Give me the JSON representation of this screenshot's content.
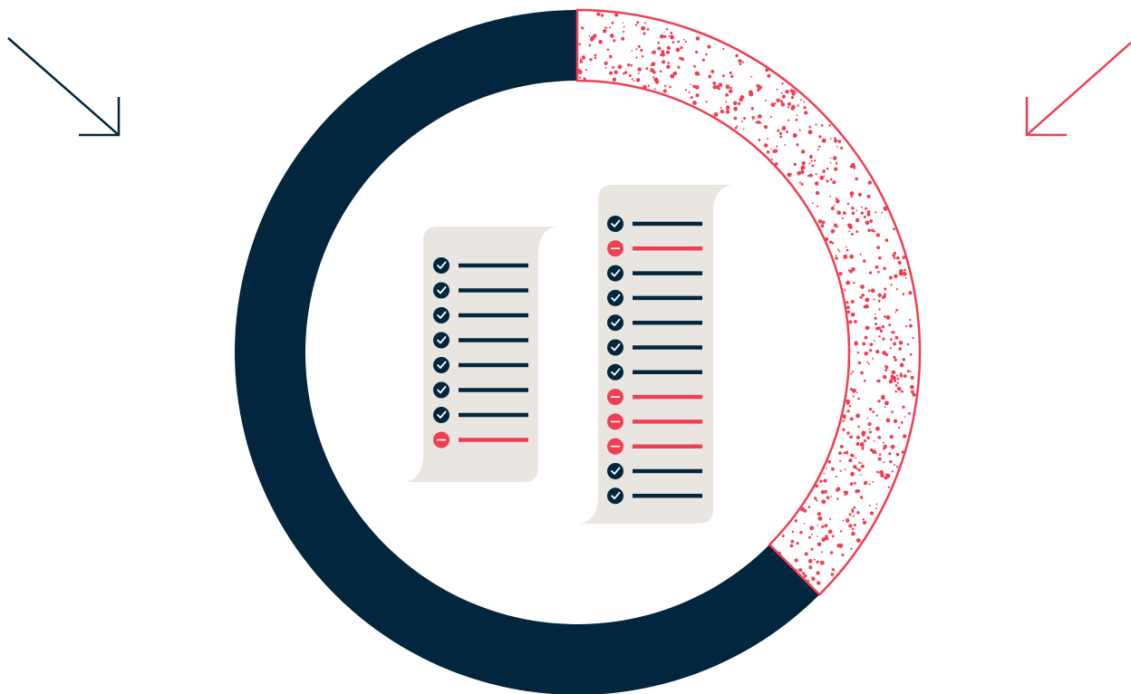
{
  "colors": {
    "navy": "#02263D",
    "red": "#F03E52",
    "paper": "#E9E6E2",
    "background": "#FFFFFF"
  },
  "donut": {
    "segments": [
      {
        "fraction": 0.375,
        "color": "#F03E52",
        "style": "dotted-outline"
      },
      {
        "fraction": 0.625,
        "color": "#02263D",
        "style": "solid"
      }
    ]
  },
  "checklists": [
    {
      "items": [
        "check",
        "check",
        "check",
        "check",
        "check",
        "check",
        "check",
        "minus"
      ]
    },
    {
      "items": [
        "check",
        "minus",
        "check",
        "check",
        "check",
        "check",
        "check",
        "minus",
        "minus",
        "minus",
        "check",
        "check"
      ]
    }
  ],
  "icons": {
    "left_arrow": "arrow-down-right-icon",
    "right_arrow": "arrow-down-left-icon",
    "check": "check-circle-icon",
    "minus": "minus-circle-icon"
  }
}
